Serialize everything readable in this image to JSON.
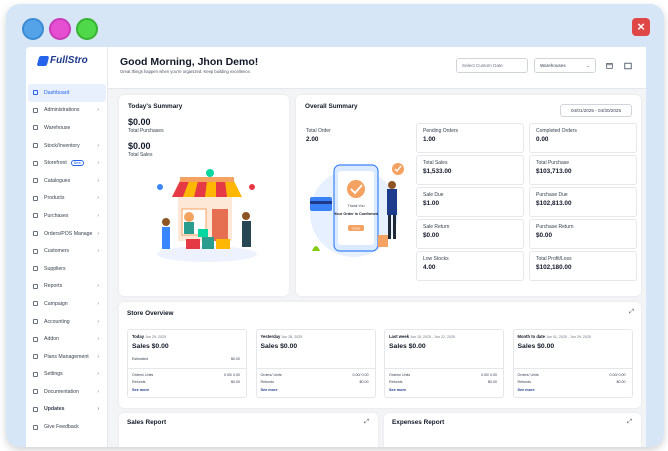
{
  "window": {
    "close_symbol": "×",
    "dots": [
      "#54a3e8",
      "#e64fd2",
      "#4fd94a"
    ]
  },
  "logo": {
    "text": "FullStro"
  },
  "sidebar": {
    "items": [
      {
        "label": "Dashboard",
        "active": true,
        "chevron": false,
        "icon": "dashboard-icon"
      },
      {
        "label": "Administrations",
        "chevron": true,
        "icon": "admin-icon"
      },
      {
        "label": "Warehouse",
        "chevron": false,
        "icon": "warehouse-icon"
      },
      {
        "label": "Stock/Inventory",
        "chevron": true,
        "icon": "stock-icon"
      },
      {
        "label": "Storefront",
        "chevron": true,
        "badge": "New",
        "icon": "storefront-icon"
      },
      {
        "label": "Catalogues",
        "chevron": true,
        "icon": "catalogue-icon"
      },
      {
        "label": "Products",
        "chevron": true,
        "icon": "products-icon"
      },
      {
        "label": "Purchases",
        "chevron": true,
        "icon": "purchases-icon"
      },
      {
        "label": "Orders/POS Manage",
        "chevron": true,
        "icon": "orders-icon"
      },
      {
        "label": "Customers",
        "chevron": true,
        "icon": "customers-icon"
      },
      {
        "label": "Suppliers",
        "chevron": false,
        "icon": "suppliers-icon"
      },
      {
        "label": "Reports",
        "chevron": true,
        "icon": "reports-icon"
      },
      {
        "label": "Campaign",
        "chevron": true,
        "icon": "campaign-icon"
      },
      {
        "label": "Accounting",
        "chevron": true,
        "icon": "accounting-icon"
      },
      {
        "label": "Addon",
        "chevron": true,
        "icon": "addon-icon"
      },
      {
        "label": "Plans Management",
        "chevron": true,
        "icon": "plans-icon"
      },
      {
        "label": "Settings",
        "chevron": true,
        "icon": "settings-icon"
      },
      {
        "label": "Documentation",
        "chevron": true,
        "icon": "documentation-icon"
      },
      {
        "label": "Updates",
        "chevron": true,
        "bold": true,
        "icon": "updates-icon"
      },
      {
        "label": "Give Feedback",
        "chevron": false,
        "icon": "feedback-icon"
      }
    ]
  },
  "header": {
    "greeting": "Good Morning, Jhon Demo!",
    "subtitle": "Great things happen when you're organized. Keep building excellence.",
    "date_placeholder": "Select Custom Date",
    "warehouse_select": "Warehouses",
    "chevron": "⌄"
  },
  "today_summary": {
    "title": "Today's Summary",
    "total_purchases_value": "$0.00",
    "total_purchases_label": "Total Purchases",
    "total_sales_value": "$0.00",
    "total_sales_label": "Total Sales"
  },
  "overall_summary": {
    "title": "Overall Summary",
    "date_range": "04/01/2025 - 04/30/2025",
    "total_order_label": "Total Order",
    "total_order_value": "2.00",
    "illustration_text": {
      "thank_you": "Thank You",
      "confirmed": "Your Order is Confirmed",
      "button": "DONE"
    },
    "stats": [
      {
        "label": "Pending Orders",
        "value": "1.00"
      },
      {
        "label": "Completed Orders",
        "value": "0.00"
      },
      {
        "label": "Total Sales",
        "value": "$1,533.00"
      },
      {
        "label": "Total Purchase",
        "value": "$103,713.00"
      },
      {
        "label": "Sale Due",
        "value": "$1.00"
      },
      {
        "label": "Purchase Due",
        "value": "$102,813.00"
      },
      {
        "label": "Sale Return",
        "value": "$0.00"
      },
      {
        "label": "Purchase Return",
        "value": "$0.00"
      },
      {
        "label": "Low Stocks",
        "value": "4.00"
      },
      {
        "label": "Total Profit/Loss",
        "value": "$102,180.00"
      }
    ]
  },
  "store_overview": {
    "title": "Store Overview",
    "expand_symbol": "⤢",
    "boxes": [
      {
        "period": "Today",
        "date": "Jun 29, 2025",
        "sales": "Sales  $0.00",
        "estimated_label": "Estimated",
        "estimated_value": "$0.00",
        "orders_label": "Orders/ Units",
        "orders_value": "0.00/ 0.00",
        "refunds_label": "Refunds",
        "refunds_value": "$0.00",
        "more": "See more"
      },
      {
        "period": "Yesterday",
        "date": "Jun 28, 2025",
        "sales": "Sales  $0.00",
        "estimated_label": "",
        "estimated_value": "",
        "orders_label": "Orders/ Units",
        "orders_value": "0.00/ 0.00",
        "refunds_label": "Refunds",
        "refunds_value": "$0.00",
        "more": "See more"
      },
      {
        "period": "Last week",
        "date": "Jun 15, 2025 - Jun 22, 2025",
        "sales": "Sales  $0.00",
        "estimated_label": "",
        "estimated_value": "",
        "orders_label": "Orders/ Units",
        "orders_value": "0.00/ 0.00",
        "refunds_label": "Refunds",
        "refunds_value": "$0.00",
        "more": "See more"
      },
      {
        "period": "Month to date",
        "date": "Jun 01, 2025 - Jun 29, 2025",
        "sales": "Sales  $0.00",
        "estimated_label": "",
        "estimated_value": "",
        "orders_label": "Orders/ Units",
        "orders_value": "0.00/ 0.00",
        "refunds_label": "Refunds",
        "refunds_value": "$0.00",
        "more": "See more"
      }
    ]
  },
  "sales_report": {
    "title": "Sales Report"
  },
  "expenses_report": {
    "title": "Expenses Report"
  }
}
